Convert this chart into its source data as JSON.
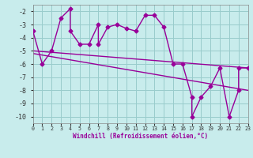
{
  "x_data": [
    0,
    1,
    2,
    3,
    4,
    4,
    5,
    6,
    7,
    7,
    8,
    9,
    10,
    11,
    12,
    13,
    14,
    15,
    16,
    17,
    17,
    18,
    19,
    20,
    21,
    22,
    22,
    23
  ],
  "y_data": [
    -3.5,
    -6.0,
    -5.0,
    -2.5,
    -1.8,
    -3.5,
    -4.5,
    -4.5,
    -3.0,
    -4.5,
    -3.2,
    -3.0,
    -3.3,
    -3.5,
    -2.3,
    -2.3,
    -3.2,
    -6.0,
    -6.0,
    -8.5,
    -10.0,
    -8.5,
    -7.7,
    -6.3,
    -10.0,
    -8.0,
    -6.3,
    -6.3
  ],
  "trend1_x": [
    0,
    23
  ],
  "trend1_y": [
    -5.0,
    -6.3
  ],
  "trend2_x": [
    0,
    23
  ],
  "trend2_y": [
    -5.2,
    -8.0
  ],
  "line_color": "#990099",
  "bg_color": "#c8ecec",
  "grid_color": "#99cccc",
  "xlim": [
    0,
    23
  ],
  "ylim": [
    -10.5,
    -1.5
  ],
  "yticks": [
    -2,
    -3,
    -4,
    -5,
    -6,
    -7,
    -8,
    -9,
    -10
  ],
  "xtick_labels": [
    "0",
    "1",
    "2",
    "3",
    "4",
    "5",
    "6",
    "7",
    "8",
    "9",
    "10",
    "11",
    "12",
    "13",
    "14",
    "15",
    "16",
    "17",
    "18",
    "19",
    "20",
    "21",
    "22",
    "23"
  ],
  "xlabel": "Windchill (Refroidissement éolien,°C)",
  "marker": "D",
  "markersize": 2.5,
  "linewidth": 1.0
}
